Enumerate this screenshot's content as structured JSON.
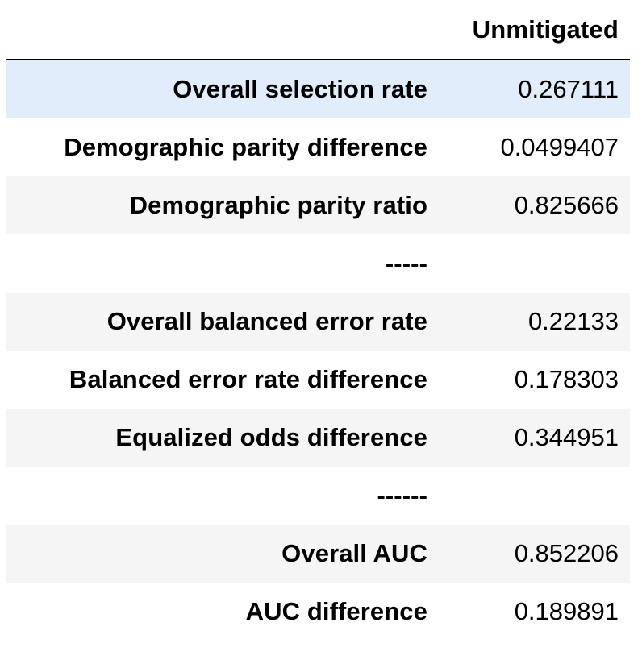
{
  "table": {
    "column_header": "Unmitigated",
    "rows": [
      {
        "label": "Overall selection rate",
        "value": "0.267111"
      },
      {
        "label": "Demographic parity difference",
        "value": "0.0499407"
      },
      {
        "label": "Demographic parity ratio",
        "value": "0.825666"
      },
      {
        "label": "-----",
        "value": ""
      },
      {
        "label": "Overall balanced error rate",
        "value": "0.22133"
      },
      {
        "label": "Balanced error rate difference",
        "value": "0.178303"
      },
      {
        "label": "Equalized odds difference",
        "value": "0.344951"
      },
      {
        "label": "------",
        "value": ""
      },
      {
        "label": "Overall AUC",
        "value": "0.852206"
      },
      {
        "label": "AUC difference",
        "value": "0.189891"
      }
    ]
  },
  "colors": {
    "highlight_row": "#e1edfb",
    "striped_row": "#f5f5f5",
    "header_rule": "#000000"
  }
}
